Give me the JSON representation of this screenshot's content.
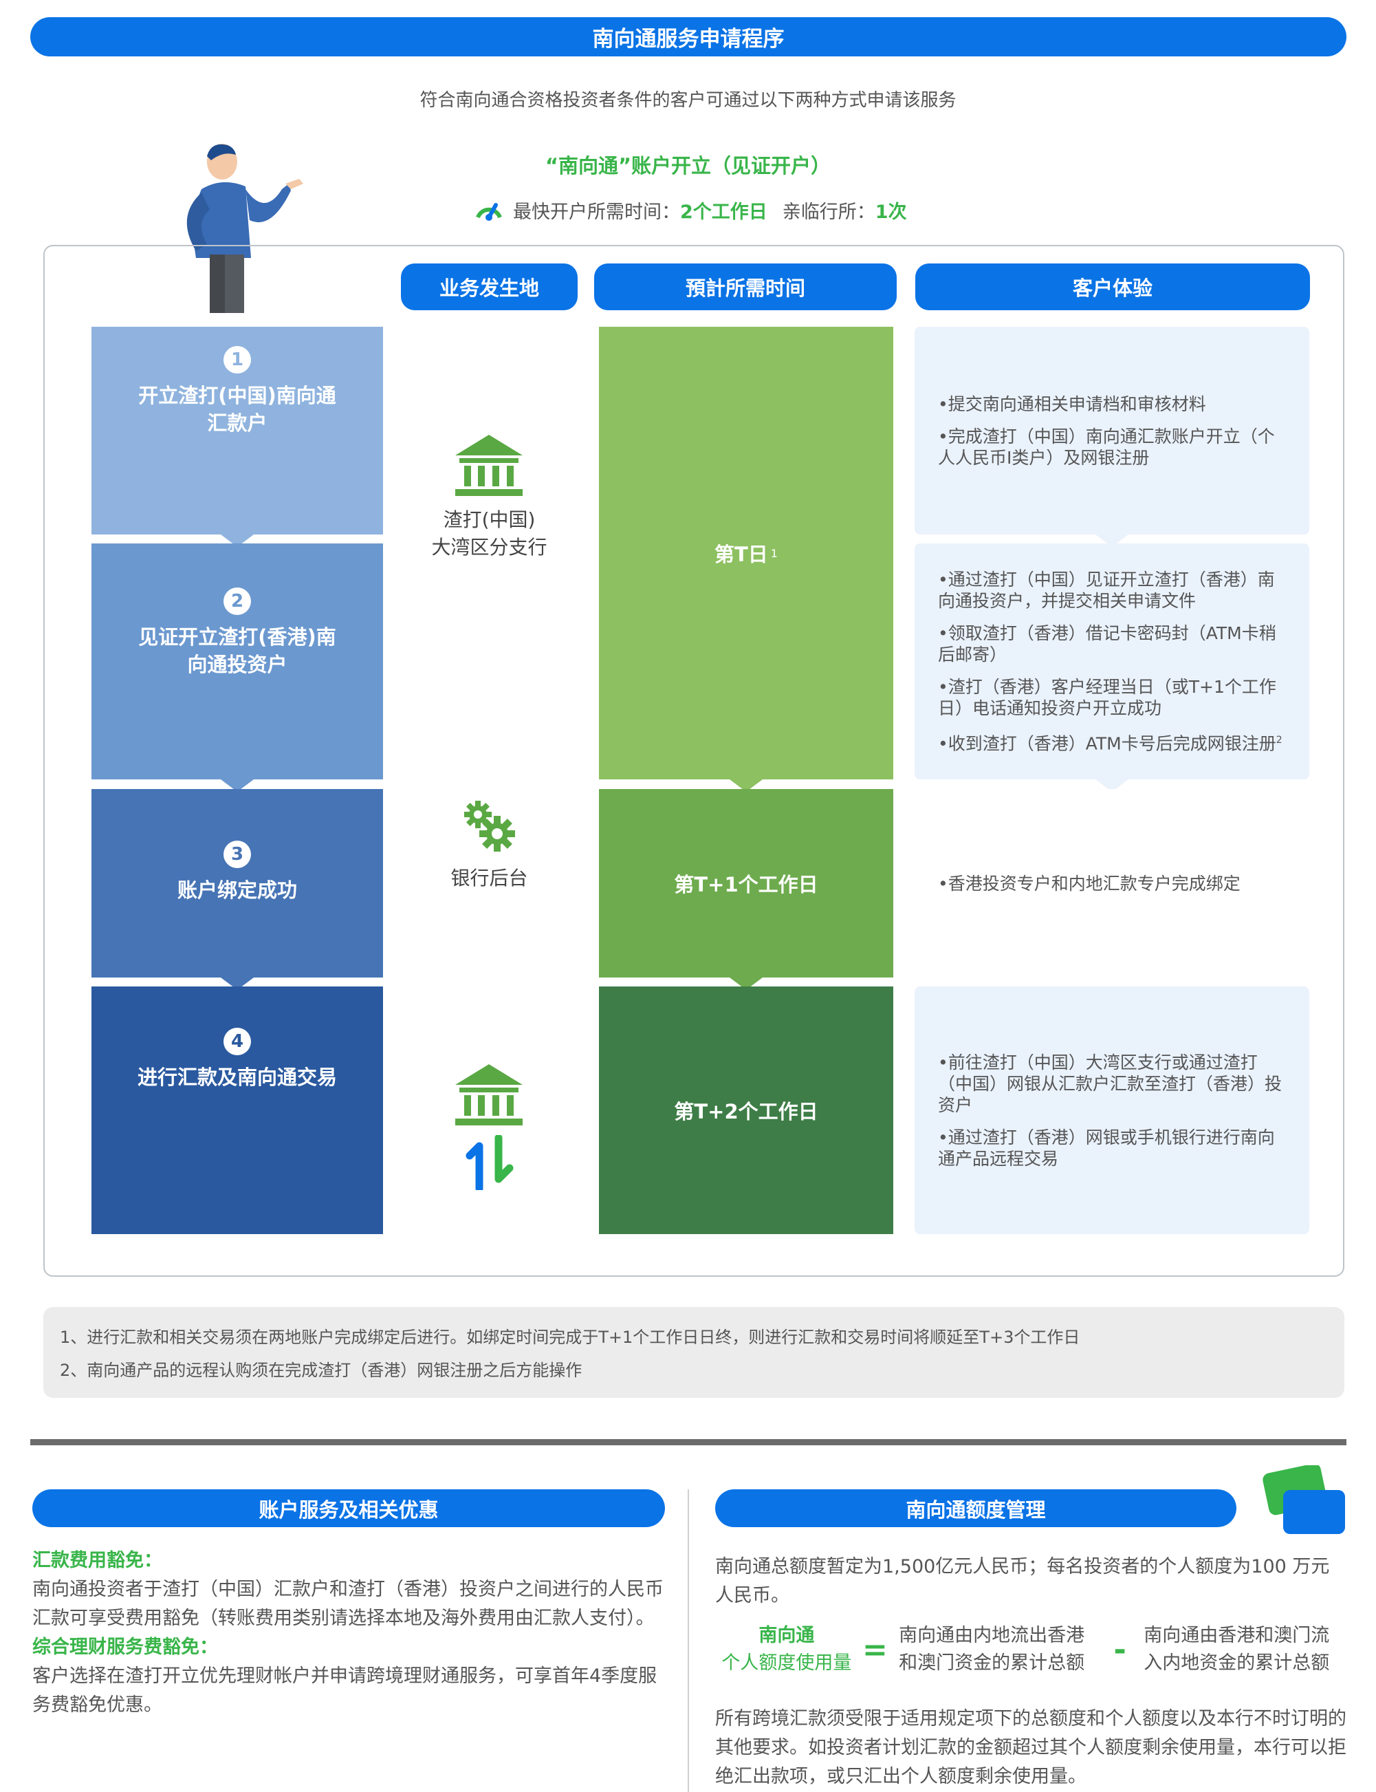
{
  "header": {
    "title": "南向通服务申请程序",
    "subtitle": "符合南向通合资格投资者条件的客户可通过以下两种方式申请该服务",
    "account_title": "“南向通”账户开立（见证开户）",
    "fastest_label": "最快开户所需时间：",
    "fastest_value": "2个工作日",
    "visit_label": "亲临行所：",
    "visit_value": "1次"
  },
  "columns": {
    "location": "业务发生地",
    "time": "預計所需时间",
    "experience": "客户体验"
  },
  "steps": [
    {
      "num": "1",
      "label": "开立渣打(中国)南向通汇款户"
    },
    {
      "num": "2",
      "label": "见证开立渣打(香港)南向通投资户"
    },
    {
      "num": "3",
      "label": "账户绑定成功"
    },
    {
      "num": "4",
      "label": "进行汇款及南向通交易"
    }
  ],
  "locations": {
    "branch_line1": "渣打(中国)",
    "branch_line2": "大湾区分支行",
    "backoffice": "银行后台"
  },
  "times": {
    "t": "第T日",
    "t_sup": "1",
    "t1": "第T+1个工作日",
    "t2": "第T+2个工作日"
  },
  "experience": {
    "box1": [
      "•提交南向通相关申请档和审核材料",
      "•完成渣打（中国）南向通汇款账户开立（个人人民币I类户）及网银注册"
    ],
    "box2": [
      "•通过渣打（中国）见证开立渣打（香港）南向通投资户，并提交相关申请文件",
      "•领取渣打（香港）借记卡密码封（ATM卡稍后邮寄）",
      "•渣打（香港）客户经理当日（或T+1个工作日）电话通知投资户开立成功",
      "•收到渣打（香港）ATM卡号后完成网银注册"
    ],
    "box2_sup": "2",
    "box3": [
      "•香港投资专户和内地汇款专户完成绑定"
    ],
    "box4": [
      "•前往渣打（中国）大湾区支行或通过渣打（中国）网银从汇款户汇款至渣打（香港）投资户",
      "•通过渣打（香港）网银或手机银行进行南向通产品远程交易"
    ]
  },
  "notes": [
    "1、进行汇款和相关交易须在两地账户完成绑定后进行。如绑定时间完成于T+1个工作日日终，则进行汇款和交易时间将顺延至T+3个工作日",
    "2、南向通产品的远程认购须在完成渣打（香港）网银注册之后方能操作"
  ],
  "left_section": {
    "title": "账户服务及相关优惠",
    "h1": "汇款费用豁免：",
    "p1": "南向通投资者于渣打（中国）汇款户和渣打（香港）投资户之间进行的人民币汇款可享受费用豁免（转账费用类别请选择本地及海外费用由汇款人支付）。",
    "h2": "综合理财服务费豁免：",
    "p2": "客户选择在渣打开立优先理财帐户并申请跨境理财通服务，可享首年4季度服务费豁免优惠。"
  },
  "right_section": {
    "title": "南向通额度管理",
    "p1": "南向通总额度暂定为1,500亿元人民币；每名投资者的个人额度为100 万元人民币。",
    "formula_left_1": "南向通",
    "formula_left_2": "个人额度使用量",
    "formula_eq": "=",
    "formula_mid": "南向通由内地流出香港和澳门资金的累计总额",
    "formula_minus": "-",
    "formula_right": "南向通由香港和澳门流入内地资金的累计总额",
    "p2": "所有跨境汇款须受限于适用规定项下的总额度和个人额度以及本行不时订明的其他要求。如投资者计划汇款的金额超过其个人额度剩余使用量，本行可以拒绝汇出款项，或只汇出个人额度剩余使用量。"
  },
  "colors": {
    "blue": "#0a73e6",
    "step1": "#8fb3de",
    "step2": "#6b98cf",
    "step3": "#4674b5",
    "step4": "#2a599f",
    "green1": "#8dc060",
    "green2": "#6eab4e",
    "green3": "#3e7d47",
    "accent_green": "#39b54a"
  }
}
